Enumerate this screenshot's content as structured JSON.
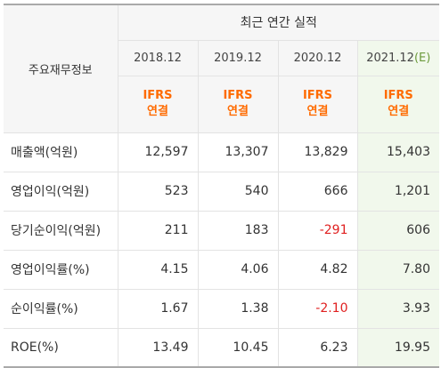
{
  "header": {
    "row_label": "주요재무정보",
    "period_title": "최근 연간 실적",
    "years": [
      {
        "label": "2018.12",
        "estimate": "",
        "standard": [
          "IFRS",
          "연결"
        ]
      },
      {
        "label": "2019.12",
        "estimate": "",
        "standard": [
          "IFRS",
          "연결"
        ]
      },
      {
        "label": "2020.12",
        "estimate": "",
        "standard": [
          "IFRS",
          "연결"
        ]
      },
      {
        "label": "2021.12",
        "estimate": "(E)",
        "standard": [
          "IFRS",
          "연결"
        ]
      }
    ]
  },
  "rows": [
    {
      "label": "매출액(억원)",
      "values": [
        "12,597",
        "13,307",
        "13,829",
        "15,403"
      ]
    },
    {
      "label": "영업이익(억원)",
      "values": [
        "523",
        "540",
        "666",
        "1,201"
      ]
    },
    {
      "label": "당기순이익(억원)",
      "values": [
        "211",
        "183",
        "-291",
        "606"
      ]
    },
    {
      "label": "영업이익률(%)",
      "values": [
        "4.15",
        "4.06",
        "4.82",
        "7.80"
      ]
    },
    {
      "label": "순이익률(%)",
      "values": [
        "1.67",
        "1.38",
        "-2.10",
        "3.93"
      ]
    },
    {
      "label": "ROE(%)",
      "values": [
        "13.49",
        "10.45",
        "6.23",
        "19.95"
      ]
    }
  ],
  "colors": {
    "standard_text": "#ff6b00",
    "negative_value": "#e02020",
    "estimate_column_bg": "#f1f8ec",
    "header_bg": "#f6f6f6"
  }
}
